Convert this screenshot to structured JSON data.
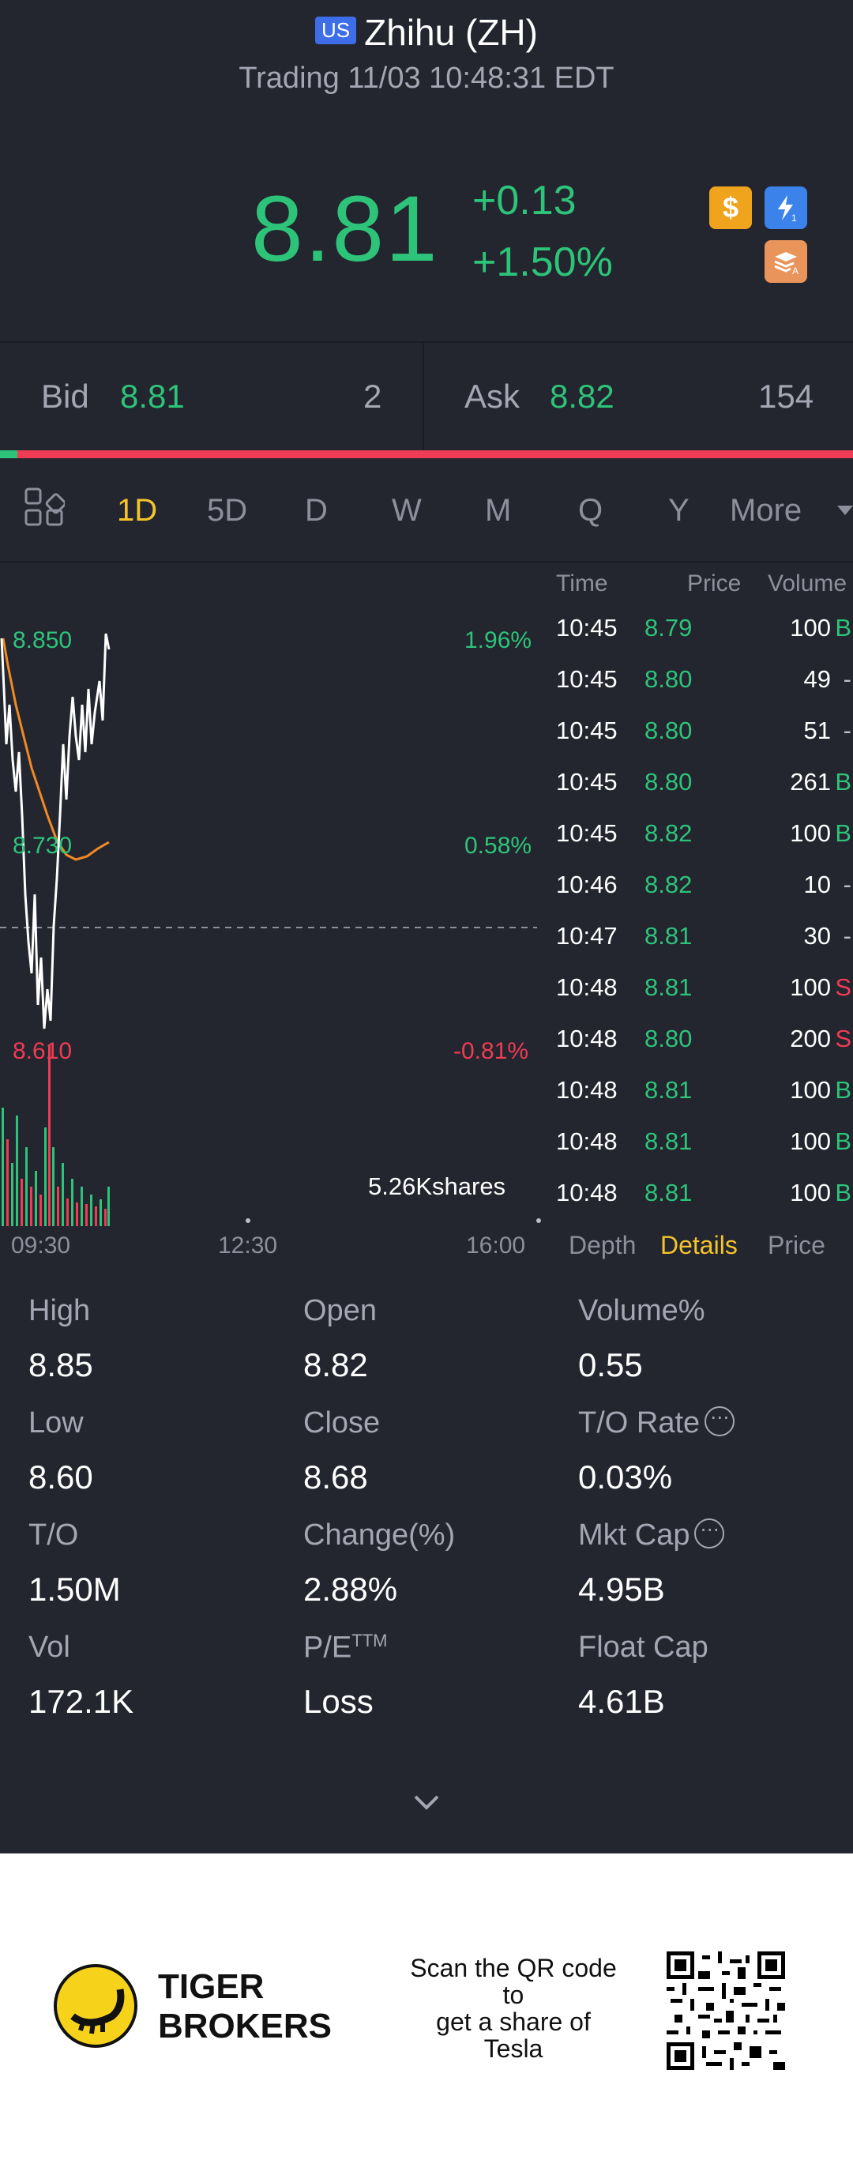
{
  "header": {
    "badge": "US",
    "title": "Zhihu (ZH)",
    "subtitle": "Trading 11/03 10:48:31 EDT"
  },
  "quote": {
    "price": "8.81",
    "change": "+0.13",
    "change_pct": "+1.50%",
    "icons": [
      "dollar-icon",
      "lightning-level1-icon",
      "stack-a-icon"
    ]
  },
  "bidask": {
    "bid_label": "Bid",
    "bid_price": "8.81",
    "bid_size": "2",
    "ask_label": "Ask",
    "ask_price": "8.82",
    "ask_size": "154",
    "bid_ratio": 0.02
  },
  "period_tabs": {
    "items": [
      "1D",
      "5D",
      "D",
      "W",
      "M",
      "Q",
      "Y"
    ],
    "more": "More",
    "active": "1D"
  },
  "chart": {
    "high_price": "8.850",
    "high_pct": "1.96%",
    "mid_price": "8.730",
    "mid_pct": "0.58%",
    "low_price": "8.610",
    "low_pct": "-0.81%",
    "volume_label": "5.26Kshares",
    "times": [
      "09:30",
      "12:30",
      "16:00"
    ]
  },
  "trades": {
    "headers": [
      "Time",
      "Price",
      "Volume"
    ],
    "rows": [
      {
        "time": "10:45",
        "price": "8.79",
        "volume": "100",
        "flag": "B"
      },
      {
        "time": "10:45",
        "price": "8.80",
        "volume": "49",
        "flag": "-"
      },
      {
        "time": "10:45",
        "price": "8.80",
        "volume": "51",
        "flag": "-"
      },
      {
        "time": "10:45",
        "price": "8.80",
        "volume": "261",
        "flag": "B"
      },
      {
        "time": "10:45",
        "price": "8.82",
        "volume": "100",
        "flag": "B"
      },
      {
        "time": "10:46",
        "price": "8.82",
        "volume": "10",
        "flag": "-"
      },
      {
        "time": "10:47",
        "price": "8.81",
        "volume": "30",
        "flag": "-"
      },
      {
        "time": "10:48",
        "price": "8.81",
        "volume": "100",
        "flag": "S"
      },
      {
        "time": "10:48",
        "price": "8.80",
        "volume": "200",
        "flag": "S"
      },
      {
        "time": "10:48",
        "price": "8.81",
        "volume": "100",
        "flag": "B"
      },
      {
        "time": "10:48",
        "price": "8.81",
        "volume": "100",
        "flag": "B"
      },
      {
        "time": "10:48",
        "price": "8.81",
        "volume": "100",
        "flag": "B"
      }
    ],
    "sub_tabs": [
      "Depth",
      "Details",
      "Price"
    ],
    "active_sub_tab": "Details"
  },
  "stats": {
    "high_label": "High",
    "high": "8.85",
    "open_label": "Open",
    "open": "8.82",
    "volume_pct_label": "Volume%",
    "volume_pct": "0.55",
    "low_label": "Low",
    "low": "8.60",
    "close_label": "Close",
    "close": "8.68",
    "to_rate_label": "T/O Rate",
    "to_rate": "0.03%",
    "to_label": "T/O",
    "to": "1.50M",
    "change_pct_label": "Change(%)",
    "change_pct": "2.88%",
    "mkt_cap_label": "Mkt Cap",
    "mkt_cap": "4.95B",
    "vol_label": "Vol",
    "vol": "172.1K",
    "pe_label": "P/E",
    "pe_sup": "TTM",
    "pe": "Loss",
    "float_cap_label": "Float Cap",
    "float_cap": "4.61B"
  },
  "footer": {
    "brand_line1": "TIGER",
    "brand_line2": "BROKERS",
    "scan_line1": "Scan the QR code",
    "scan_line2": "to",
    "scan_line3": "get a share of",
    "scan_line4": "Tesla"
  },
  "colors": {
    "up": "#2dc47a",
    "down": "#f03b54",
    "active_tab": "#f5c42c",
    "background": "#23252f"
  }
}
